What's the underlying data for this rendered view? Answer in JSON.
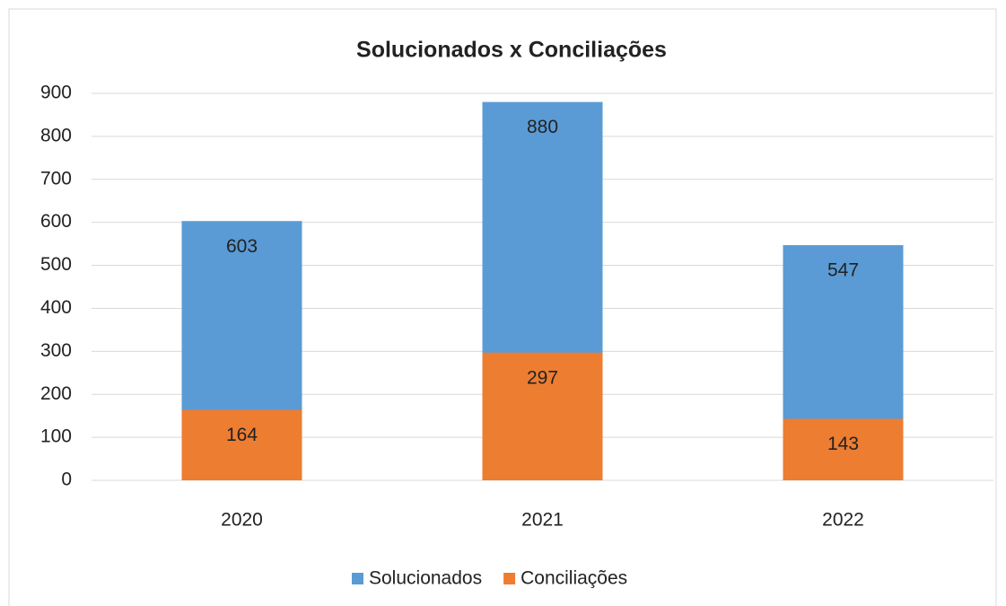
{
  "chart_data": {
    "type": "bar",
    "overlap": true,
    "title": "Solucionados x Conciliações",
    "categories": [
      "2020",
      "2021",
      "2022"
    ],
    "series": [
      {
        "name": "Solucionados",
        "color": "#5b9bd5",
        "values": [
          603,
          880,
          547
        ]
      },
      {
        "name": "Conciliações",
        "color": "#ed7d31",
        "values": [
          164,
          297,
          143
        ]
      }
    ],
    "ylim": [
      0,
      900
    ],
    "yticks": [
      0,
      100,
      200,
      300,
      400,
      500,
      600,
      700,
      800,
      900
    ],
    "grid": true,
    "legend": "bottom"
  }
}
